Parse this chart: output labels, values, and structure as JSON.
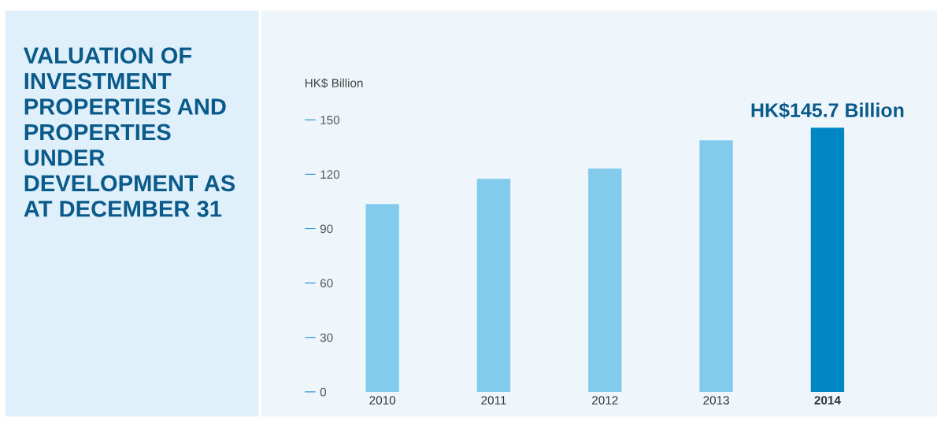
{
  "chart_data": {
    "type": "bar",
    "title": "VALUATION OF INVESTMENT PROPERTIES AND PROPERTIES UNDER DEVELOPMENT AS AT DECEMBER 31",
    "ylabel": "HK$ Billion",
    "categories": [
      "2010",
      "2011",
      "2012",
      "2013",
      "2014"
    ],
    "values": [
      103.6,
      117.5,
      123.1,
      138.7,
      145.7
    ],
    "colors": [
      "#82cbec",
      "#82cbec",
      "#82cbec",
      "#82cbec",
      "#0086c3"
    ],
    "value_labels": [
      null,
      null,
      null,
      null,
      "HK$145.7 Billion"
    ],
    "ylim": [
      0,
      150
    ],
    "yticks": [
      0,
      30,
      60,
      90,
      120,
      150
    ],
    "grid": false,
    "legend": false
  }
}
